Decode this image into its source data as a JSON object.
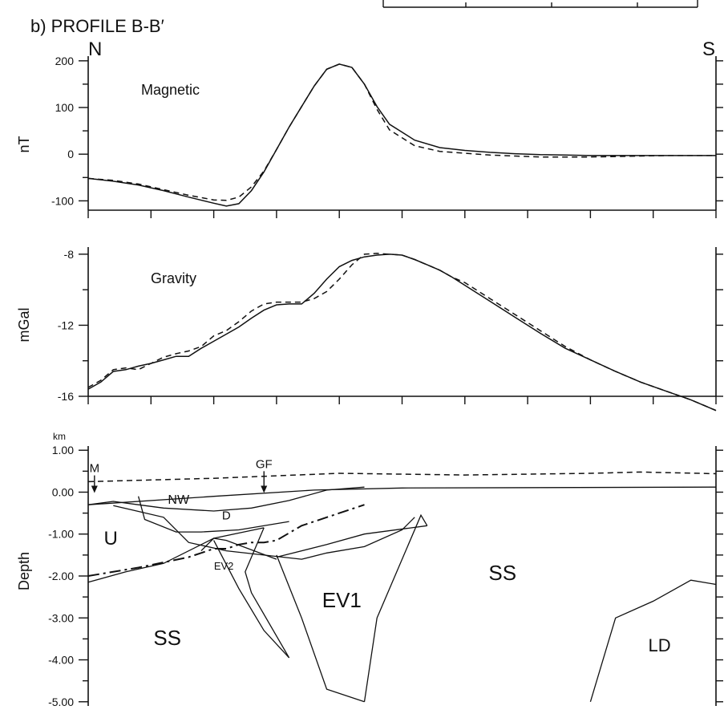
{
  "figure": {
    "title": "b) PROFILE B-B′",
    "left_end": "N",
    "right_end": "S"
  },
  "chart_data": [
    {
      "type": "line",
      "id": "magnetic",
      "panel_label": "Magnetic",
      "ylabel": "nT",
      "ylim": [
        -120,
        210
      ],
      "yticks": [
        200,
        100,
        0,
        -100
      ],
      "ytick_labels": [
        "200",
        "100",
        "0",
        "-100"
      ],
      "x": [
        0,
        2,
        4,
        6,
        8,
        10,
        11,
        12,
        13,
        14,
        15,
        16,
        17,
        18,
        19,
        20,
        21,
        22,
        23,
        24,
        26,
        28,
        30,
        32,
        34,
        36,
        38,
        40,
        42,
        44,
        46,
        48,
        50
      ],
      "series": [
        {
          "values": [
            -52,
            -58,
            -66,
            -78,
            -92,
            -105,
            -111,
            -106,
            -78,
            -38,
            10,
            58,
            102,
            146,
            182,
            193,
            186,
            150,
            102,
            64,
            30,
            14,
            8,
            4,
            1,
            -1,
            -2,
            -3,
            -3,
            -3,
            -3,
            -3,
            -3
          ]
        },
        {
          "values": [
            -52,
            -56,
            -64,
            -76,
            -88,
            -98,
            -99,
            -92,
            -70,
            -36,
            10,
            58,
            102,
            146,
            182,
            193,
            186,
            150,
            96,
            52,
            18,
            6,
            2,
            -2,
            -4,
            -6,
            -6,
            -6,
            -5,
            -4,
            -3,
            -3,
            -3
          ]
        }
      ]
    },
    {
      "type": "line",
      "id": "gravity",
      "panel_label": "Gravity",
      "ylabel": "mGal",
      "ylim": [
        -16,
        -7.6
      ],
      "yticks": [
        -8,
        -12,
        -16
      ],
      "ytick_labels": [
        "-8",
        "-12",
        "-16"
      ],
      "x": [
        0,
        1,
        2,
        3,
        4,
        5,
        6,
        7,
        8,
        9,
        10,
        11,
        12,
        13,
        14,
        15,
        16,
        17,
        18,
        19,
        20,
        21,
        22,
        23,
        24,
        25,
        26,
        27,
        28,
        29,
        30,
        32,
        34,
        36,
        38,
        40,
        42,
        44,
        46,
        48,
        50
      ],
      "series": [
        {
          "values": [
            -15.6,
            -15.2,
            -14.6,
            -14.5,
            -14.3,
            -14.15,
            -13.95,
            -13.75,
            -13.75,
            -13.3,
            -12.9,
            -12.5,
            -12.1,
            -11.6,
            -11.15,
            -10.85,
            -10.8,
            -10.8,
            -10.2,
            -9.4,
            -8.7,
            -8.35,
            -8.15,
            -8.05,
            -8.0,
            -8.05,
            -8.3,
            -8.6,
            -8.9,
            -9.3,
            -9.75,
            -10.65,
            -11.55,
            -12.45,
            -13.3,
            -13.95,
            -14.6,
            -15.2,
            -15.7,
            -16.2,
            -16.8
          ]
        },
        {
          "values": [
            -15.5,
            -15.1,
            -14.5,
            -14.4,
            -14.5,
            -14.15,
            -13.8,
            -13.6,
            -13.45,
            -13.2,
            -12.6,
            -12.3,
            -11.8,
            -11.2,
            -10.8,
            -10.7,
            -10.7,
            -10.7,
            -10.5,
            -10.1,
            -9.4,
            -8.6,
            -8.0,
            -7.95,
            -8.0,
            -8.05,
            -8.3,
            -8.6,
            -8.9,
            -9.3,
            -9.6,
            -10.5,
            -11.4,
            -12.3,
            -13.2,
            -13.95,
            -14.6,
            -15.2,
            -15.7,
            -16.2,
            -16.8
          ]
        }
      ]
    },
    {
      "type": "cross-section",
      "id": "depth",
      "ylabel": "Depth",
      "unit": "km",
      "ylim": [
        -5.1,
        1.1
      ],
      "yticks": [
        1.0,
        0.0,
        -1.0,
        -2.0,
        -3.0,
        -4.0,
        -5.0
      ],
      "ytick_labels": [
        "1.00",
        "0.00",
        "-1.00",
        "-2.00",
        "-3.00",
        "-4.00",
        "-5.00"
      ],
      "dashed_surface": {
        "x": [
          0,
          10,
          20,
          30,
          40,
          44,
          50
        ],
        "y": [
          0.25,
          0.33,
          0.45,
          0.41,
          0.45,
          0.48,
          0.44
        ]
      },
      "boundaries": [
        {
          "x": [
            0,
            10,
            18,
            25,
            50
          ],
          "y": [
            -0.3,
            -0.1,
            0.05,
            0.1,
            0.12
          ]
        },
        {
          "x": [
            0,
            2,
            4,
            6,
            10,
            13,
            16,
            19,
            22
          ],
          "y": [
            -0.3,
            -0.22,
            -0.3,
            -0.38,
            -0.45,
            -0.38,
            -0.2,
            0.05,
            0.12
          ]
        },
        {
          "x": [
            4,
            4.5,
            7,
            9,
            12,
            16
          ],
          "y": [
            -0.1,
            -0.65,
            -0.95,
            -0.95,
            -0.9,
            -0.7
          ]
        },
        {
          "x": [
            2,
            6,
            8,
            11,
            14,
            17,
            19,
            22,
            25,
            26
          ],
          "y": [
            -0.32,
            -0.6,
            -1.2,
            -1.4,
            -1.5,
            -1.6,
            -1.45,
            -1.3,
            -0.9,
            -0.6
          ]
        },
        {
          "x": [
            0,
            3,
            6,
            10,
            14
          ],
          "y": [
            -2.15,
            -1.9,
            -1.7,
            -1.1,
            -0.85
          ]
        },
        {
          "x": [
            9,
            10,
            11,
            15
          ],
          "y": [
            -1.4,
            -1.1,
            -1.15,
            -1.6
          ]
        },
        {
          "x": [
            10,
            12,
            14,
            16
          ],
          "y": [
            -1.15,
            -2.3,
            -3.3,
            -3.95
          ]
        },
        {
          "x": [
            14,
            12.5,
            13,
            16
          ],
          "y": [
            -0.85,
            -1.9,
            -2.4,
            -3.95
          ]
        },
        {
          "x": [
            15,
            17,
            19,
            22
          ],
          "y": [
            -1.5,
            -3.0,
            -4.7,
            -5.0
          ]
        },
        {
          "x": [
            22,
            23,
            26.5,
            27
          ],
          "y": [
            -5.0,
            -3.0,
            -0.55,
            -0.8
          ]
        },
        {
          "x": [
            15,
            19,
            22,
            27
          ],
          "y": [
            -1.55,
            -1.25,
            -1.0,
            -0.8
          ]
        },
        {
          "x": [
            40,
            42,
            45,
            48,
            50
          ],
          "y": [
            -5.0,
            -3.0,
            -2.6,
            -2.1,
            -2.2
          ]
        }
      ],
      "dashdot": {
        "x": [
          0,
          4,
          8,
          9,
          10,
          11,
          12,
          13,
          14,
          15,
          17,
          22
        ],
        "y": [
          -2.0,
          -1.8,
          -1.55,
          -1.45,
          -1.35,
          -1.35,
          -1.25,
          -1.2,
          -1.2,
          -1.15,
          -0.8,
          -0.3
        ]
      },
      "annotations": [
        {
          "text": "U",
          "x": 1.8,
          "y": -1.25
        },
        {
          "text": "NW",
          "x": 7.2,
          "y": -0.28
        },
        {
          "text": "D",
          "x": 11,
          "y": -0.65
        },
        {
          "text": "EV2",
          "x": 10.8,
          "y": -1.85
        },
        {
          "text": "EV1",
          "x": 20.2,
          "y": -2.75
        },
        {
          "text": "SS",
          "x": 33,
          "y": -2.1
        },
        {
          "text": "SS",
          "x": 6.3,
          "y": -3.65
        },
        {
          "text": "LD",
          "x": 45.5,
          "y": -3.8
        }
      ],
      "markers": [
        {
          "text": "M",
          "x": 0.5,
          "y": 0.4
        },
        {
          "text": "GF",
          "x": 14,
          "y": 0.5
        }
      ]
    }
  ]
}
